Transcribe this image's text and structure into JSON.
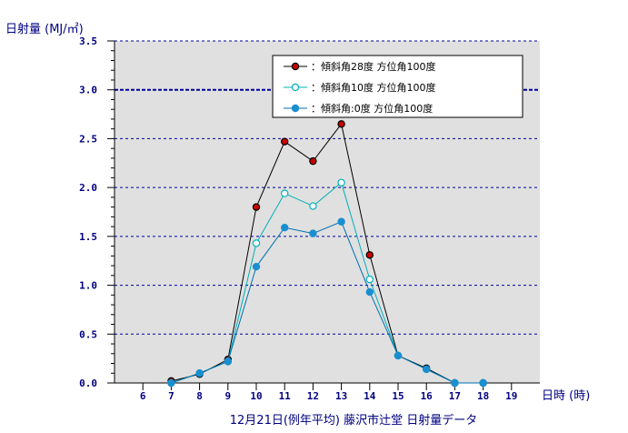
{
  "chart_data": {
    "type": "line",
    "title": "12月21日(例年平均) 藤沢市辻堂 日射量データ",
    "ylabel": "日射量 (MJ/㎡)",
    "xlabel": "日時 (時)",
    "x_ticks": [
      "6",
      "7",
      "8",
      "9",
      "10",
      "11",
      "12",
      "13",
      "14",
      "15",
      "16",
      "17",
      "18",
      "19"
    ],
    "y_ticks": [
      "0.0",
      "0.5",
      "1.0",
      "1.5",
      "2.0",
      "2.5",
      "3.0",
      "3.5"
    ],
    "xlim": [
      5,
      20
    ],
    "ylim": [
      0,
      3.5
    ],
    "grid": true,
    "legend_position": "top-right",
    "series": [
      {
        "name": "：傾斜角28度 方位角100度",
        "line_color": "#000000",
        "marker_fill": "#cc0000",
        "marker_stroke": "#000000",
        "marker": "filled-circle",
        "x": [
          7,
          8,
          9,
          10,
          11,
          12,
          13,
          14,
          15,
          16,
          17,
          18
        ],
        "values": [
          0.02,
          0.09,
          0.24,
          1.8,
          2.47,
          2.27,
          2.65,
          1.31,
          0.28,
          0.15,
          0.0,
          0.0
        ]
      },
      {
        "name": "：傾斜角10度 方位角100度",
        "line_color": "#00b0b8",
        "marker_fill": "#ffffff",
        "marker_stroke": "#00b0b8",
        "marker": "open-circle",
        "x": [
          7,
          8,
          9,
          10,
          11,
          12,
          13,
          14,
          15,
          16,
          17,
          18
        ],
        "values": [
          0.0,
          0.1,
          0.22,
          1.43,
          1.94,
          1.81,
          2.05,
          1.06,
          0.28,
          0.14,
          0.0,
          0.0
        ]
      },
      {
        "name": "：傾斜角:0度 方位角100度",
        "line_color": "#0070b0",
        "marker_fill": "#1a8fd0",
        "marker_stroke": "#1a8fd0",
        "marker": "filled-circle",
        "x": [
          7,
          8,
          9,
          10,
          11,
          12,
          13,
          14,
          15,
          16,
          17,
          18
        ],
        "values": [
          0.0,
          0.1,
          0.22,
          1.19,
          1.59,
          1.53,
          1.65,
          0.93,
          0.28,
          0.14,
          0.0,
          0.0
        ]
      }
    ],
    "colors": {
      "plot_background": "#e0e0e0",
      "grid": "#0000a0",
      "axis": "#000000",
      "text": "#000080"
    }
  }
}
